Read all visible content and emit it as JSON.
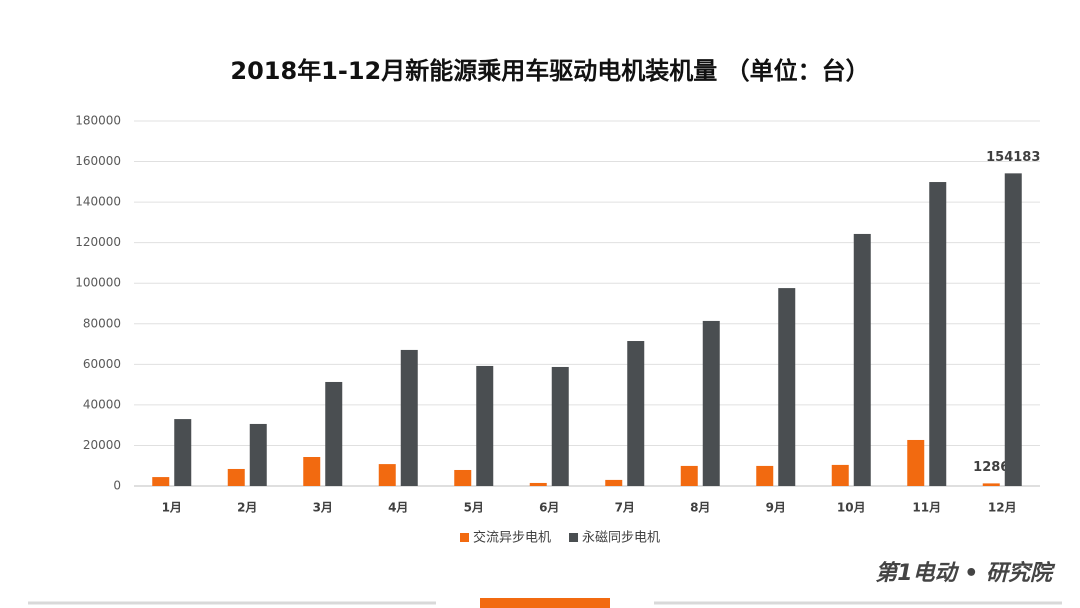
{
  "chart_data": {
    "type": "bar",
    "title": "2018年1-12月新能源乘用车驱动电机装机量 （单位：台）",
    "categories": [
      "1月",
      "2月",
      "3月",
      "4月",
      "5月",
      "6月",
      "7月",
      "8月",
      "9月",
      "10月",
      "11月",
      "12月"
    ],
    "series": [
      {
        "name": "交流异步电机",
        "color": "#f26a10",
        "values": [
          4400,
          8400,
          14300,
          10800,
          7900,
          1500,
          3000,
          9900,
          9900,
          10400,
          22700,
          1286
        ]
      },
      {
        "name": "永磁同步电机",
        "color": "#4a4e51",
        "values": [
          33000,
          30600,
          51300,
          67100,
          59200,
          58700,
          71500,
          81400,
          97600,
          124300,
          149900,
          154183
        ]
      }
    ],
    "ylim": [
      0,
      180000
    ],
    "yticks": [
      0,
      20000,
      40000,
      60000,
      80000,
      100000,
      120000,
      140000,
      160000,
      180000
    ],
    "grid": true,
    "legend": "bottom"
  },
  "logo": "第1电动 • 研究院"
}
